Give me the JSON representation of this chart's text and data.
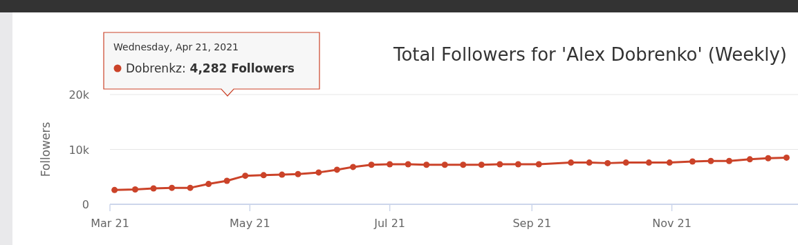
{
  "chart_data": {
    "type": "line",
    "title": "Total Followers for 'Alex Dobrenko' (Weekly)",
    "ylabel": "Followers",
    "x": [
      "2021-03-03",
      "2021-03-12",
      "2021-03-20",
      "2021-03-28",
      "2021-04-05",
      "2021-04-13",
      "2021-04-21",
      "2021-04-29",
      "2021-05-07",
      "2021-05-15",
      "2021-05-22",
      "2021-05-31",
      "2021-06-08",
      "2021-06-15",
      "2021-06-23",
      "2021-07-01",
      "2021-07-09",
      "2021-07-17",
      "2021-07-25",
      "2021-08-02",
      "2021-08-10",
      "2021-08-18",
      "2021-08-26",
      "2021-09-04",
      "2021-09-18",
      "2021-09-26",
      "2021-10-04",
      "2021-10-12",
      "2021-10-22",
      "2021-10-31",
      "2021-11-10",
      "2021-11-18",
      "2021-11-26",
      "2021-12-05",
      "2021-12-13",
      "2021-12-21"
    ],
    "series": [
      {
        "color": "#cb4329",
        "values": [
          2600,
          2700,
          2900,
          3000,
          3000,
          3700,
          4282,
          5200,
          5300,
          5400,
          5500,
          5800,
          6300,
          6800,
          7200,
          7300,
          7300,
          7200,
          7200,
          7200,
          7200,
          7300,
          7300,
          7300,
          7600,
          7600,
          7500,
          7600,
          7600,
          7600,
          7800,
          7900,
          7900,
          8200,
          8400,
          8500
        ]
      }
    ],
    "xlim": [
      "2021-03-01",
      "2021-12-26"
    ],
    "xticks": [
      {
        "value": "2021-03-01",
        "label": "Mar 21"
      },
      {
        "value": "2021-05-01",
        "label": "May 21"
      },
      {
        "value": "2021-07-01",
        "label": "Jul 21"
      },
      {
        "value": "2021-09-01",
        "label": "Sep 21"
      },
      {
        "value": "2021-11-01",
        "label": "Nov 21"
      }
    ],
    "ylim": [
      0,
      20000
    ],
    "yticks": [
      0,
      {
        "value": 10000,
        "label": "10k"
      },
      {
        "value": 20000,
        "label": "20k"
      }
    ],
    "grid": "y",
    "marker": "circle",
    "line_style": "solid",
    "annotations": [
      "Wednesday, Apr 21, 2021",
      "Dobrenkz: 4,282 Followers"
    ]
  }
}
